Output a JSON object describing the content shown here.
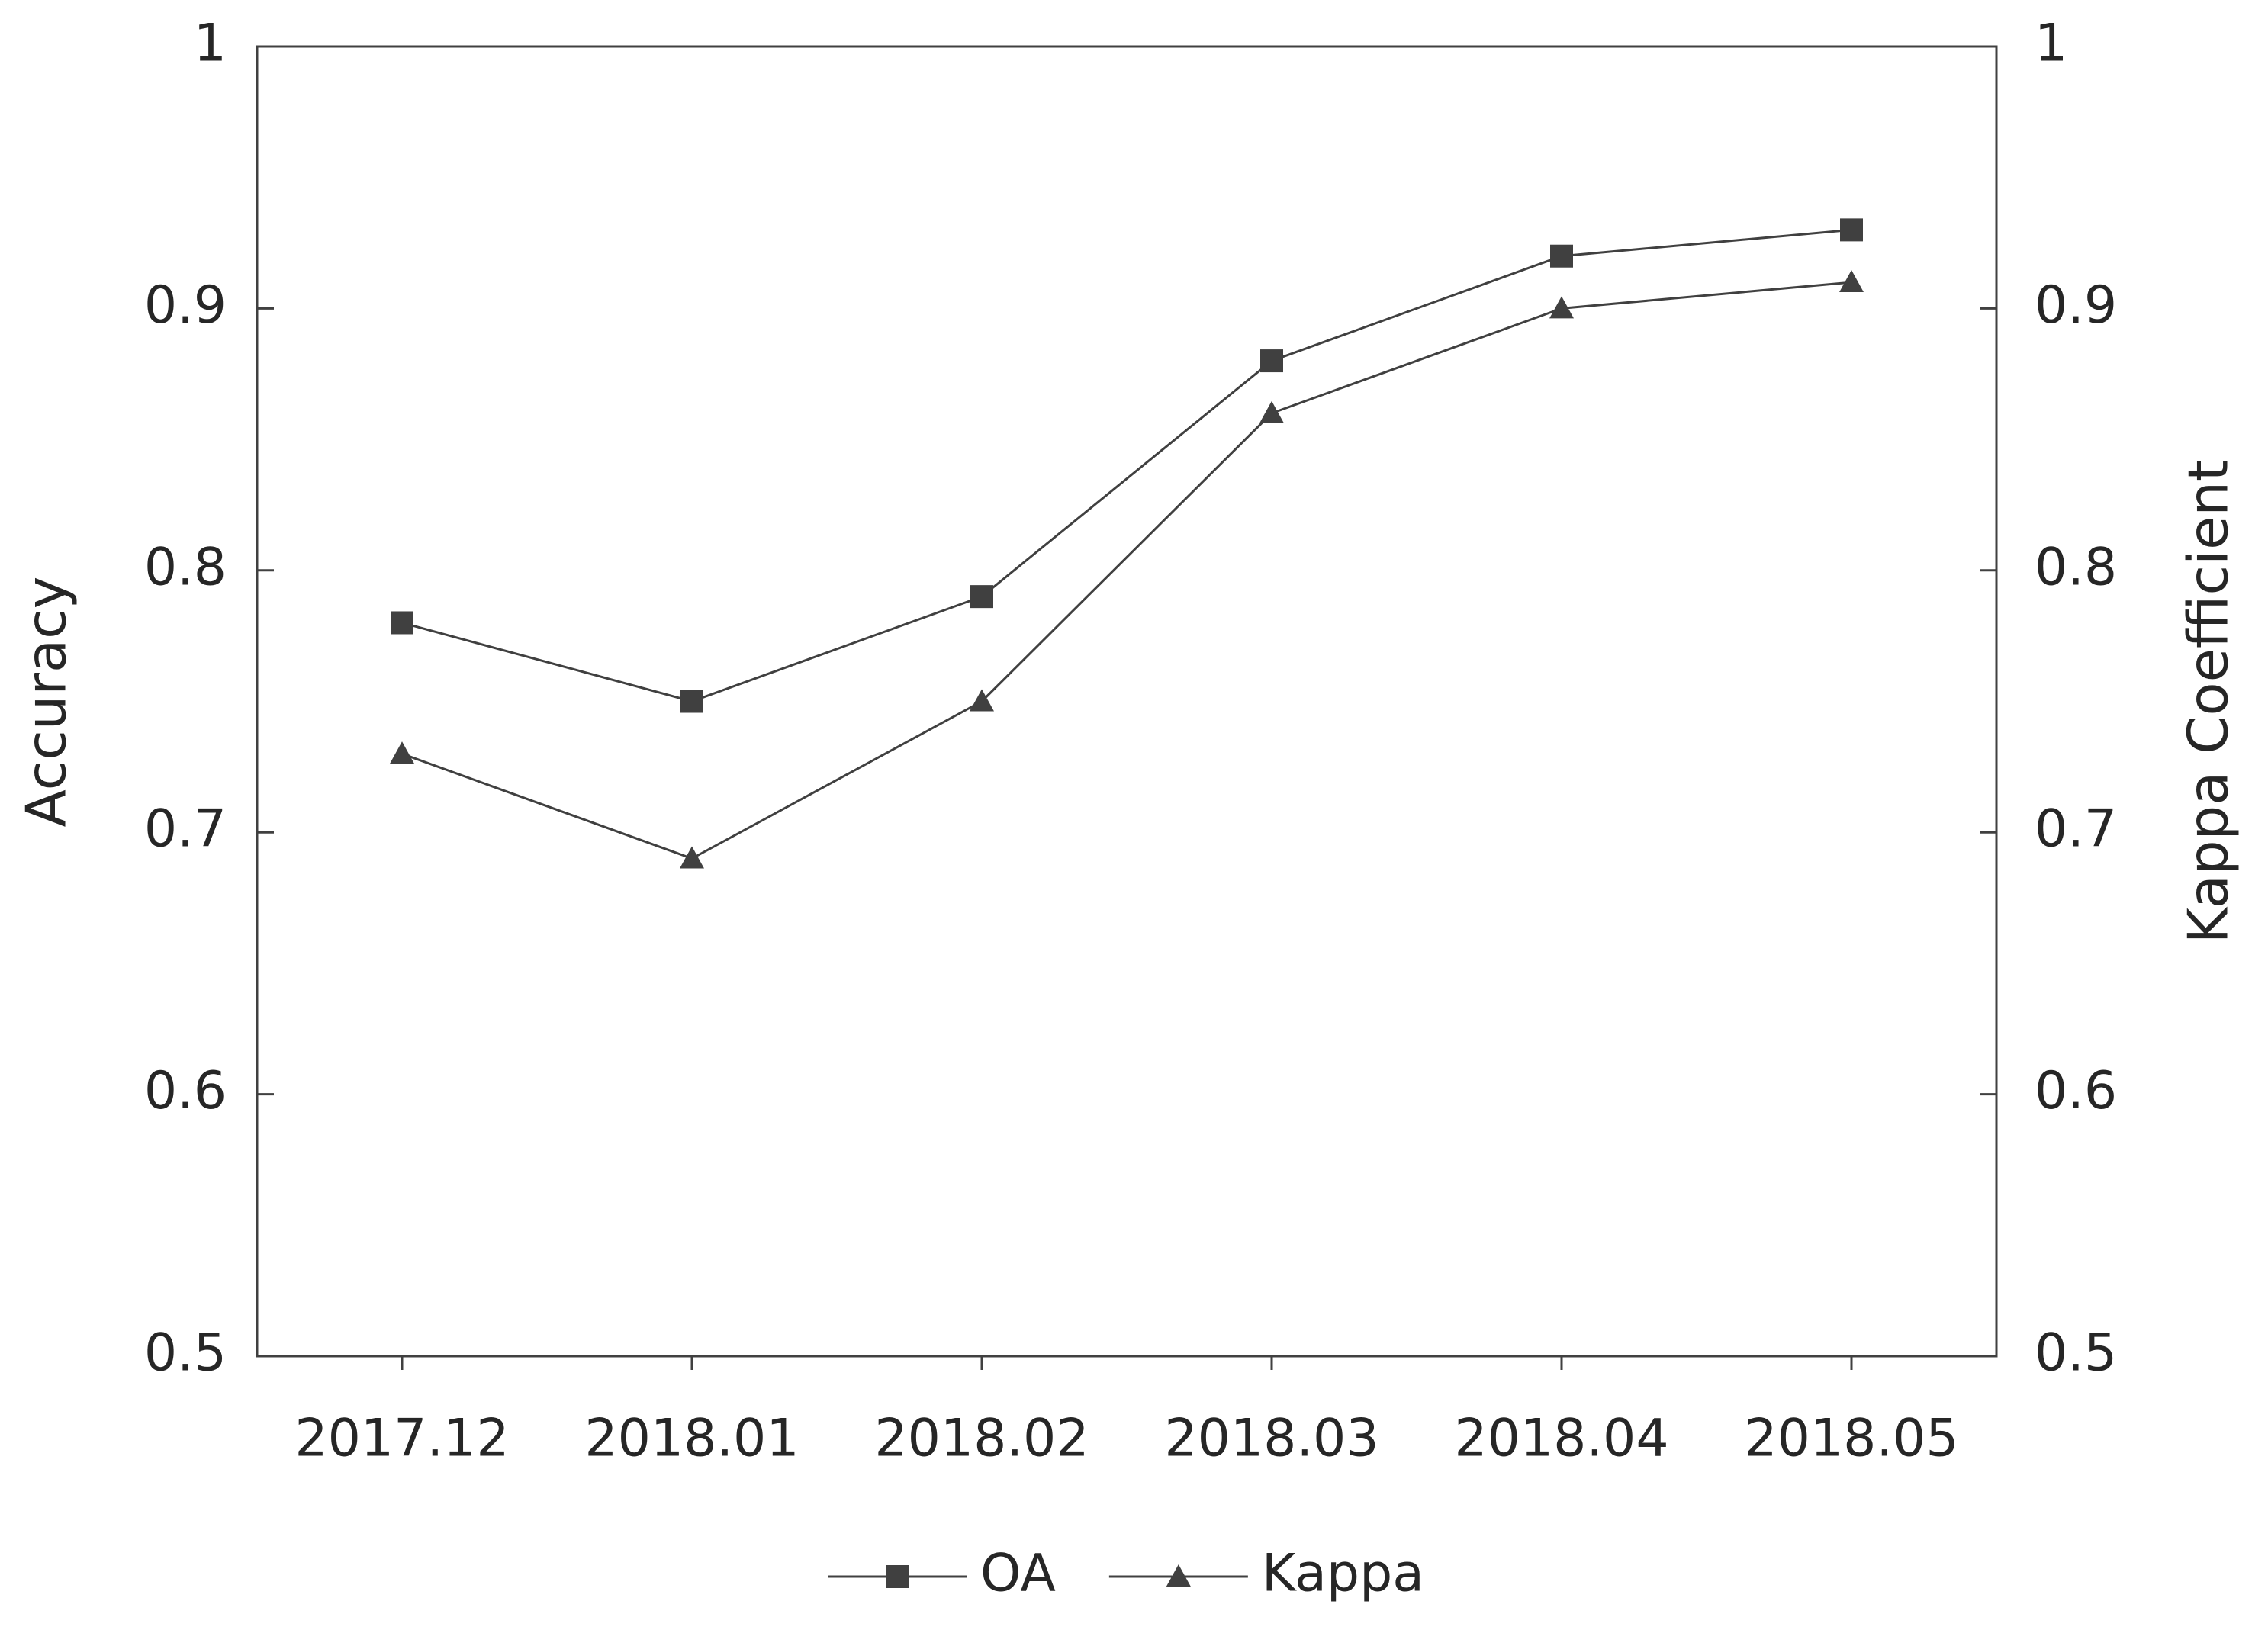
{
  "chart_data": {
    "type": "line",
    "categories": [
      "2017.12",
      "2018.01",
      "2018.02",
      "2018.03",
      "2018.04",
      "2018.05"
    ],
    "series": [
      {
        "name": "OA",
        "color": "#404040",
        "marker": "square",
        "values": [
          0.78,
          0.75,
          0.79,
          0.88,
          0.92,
          0.93
        ]
      },
      {
        "name": "Kappa",
        "color": "#404040",
        "marker": "triangle",
        "axis": "y2",
        "values": [
          0.73,
          0.69,
          0.75,
          0.86,
          0.9,
          0.91
        ]
      }
    ],
    "ylabel": "Accuracy",
    "y2label": "Kappa Coefficient",
    "ylim": [
      0.5,
      1
    ],
    "yticks": [
      0.5,
      0.6,
      0.7,
      0.8,
      0.9,
      1
    ],
    "y2lim": [
      0.5,
      1
    ],
    "y2ticks": [
      0.5,
      0.6,
      0.7,
      0.8,
      0.9,
      1
    ],
    "grid": false,
    "legend": "bottom"
  }
}
